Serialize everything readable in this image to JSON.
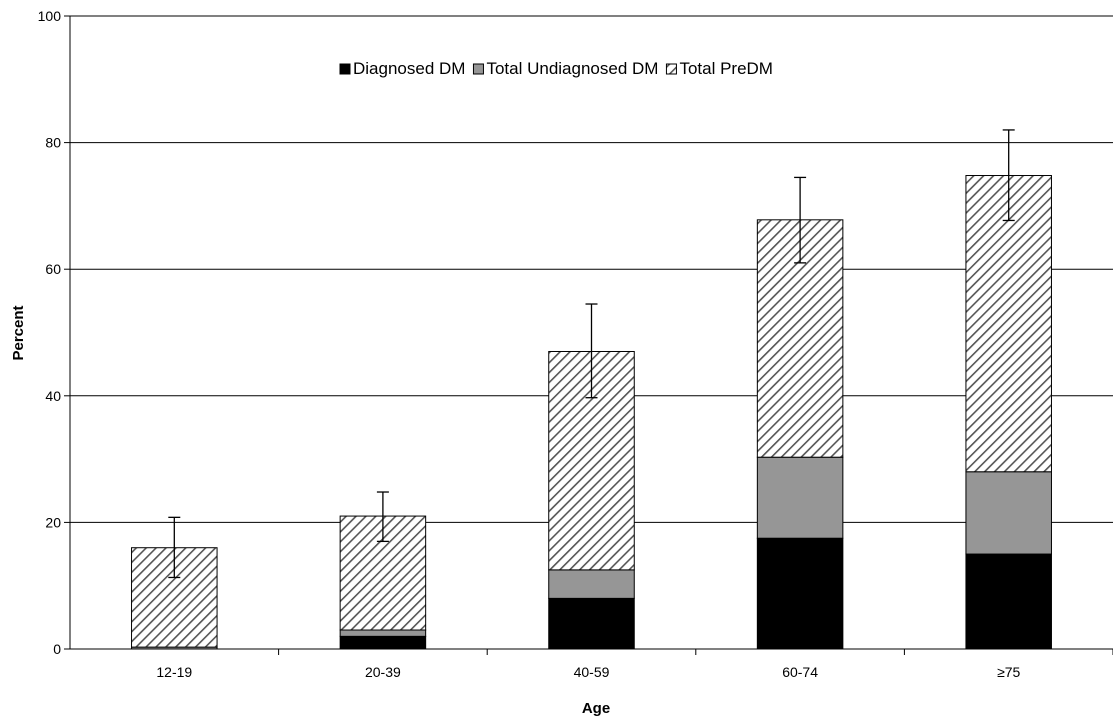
{
  "chart_data": {
    "type": "bar",
    "stacked": true,
    "categories": [
      "12-19",
      "20-39",
      "40-59",
      "60-74",
      "≥75"
    ],
    "series": [
      {
        "name": "Diagnosed DM",
        "values": [
          0,
          2,
          8,
          17.5,
          15
        ],
        "color": "#000000",
        "pattern": "solid"
      },
      {
        "name": "Total Undiagnosed DM",
        "values": [
          0.3,
          1,
          4.5,
          12.8,
          13
        ],
        "color": "#969696",
        "pattern": "solid"
      },
      {
        "name": "Total PreDM",
        "values": [
          15.7,
          18,
          34.5,
          37.5,
          46.8
        ],
        "color": "#ffffff",
        "pattern": "diagonal-hatch"
      }
    ],
    "error_bars": {
      "applies_to": "total",
      "lower": [
        11.3,
        17,
        39.7,
        61,
        67.7
      ],
      "upper": [
        20.8,
        24.8,
        54.5,
        74.5,
        82
      ]
    },
    "xlabel": "Age",
    "ylabel": "Percent",
    "ylim": [
      0,
      100
    ],
    "yticks": [
      "0",
      "20",
      "40",
      "60",
      "80",
      "100"
    ],
    "grid": true,
    "legend_position": "top-center"
  }
}
